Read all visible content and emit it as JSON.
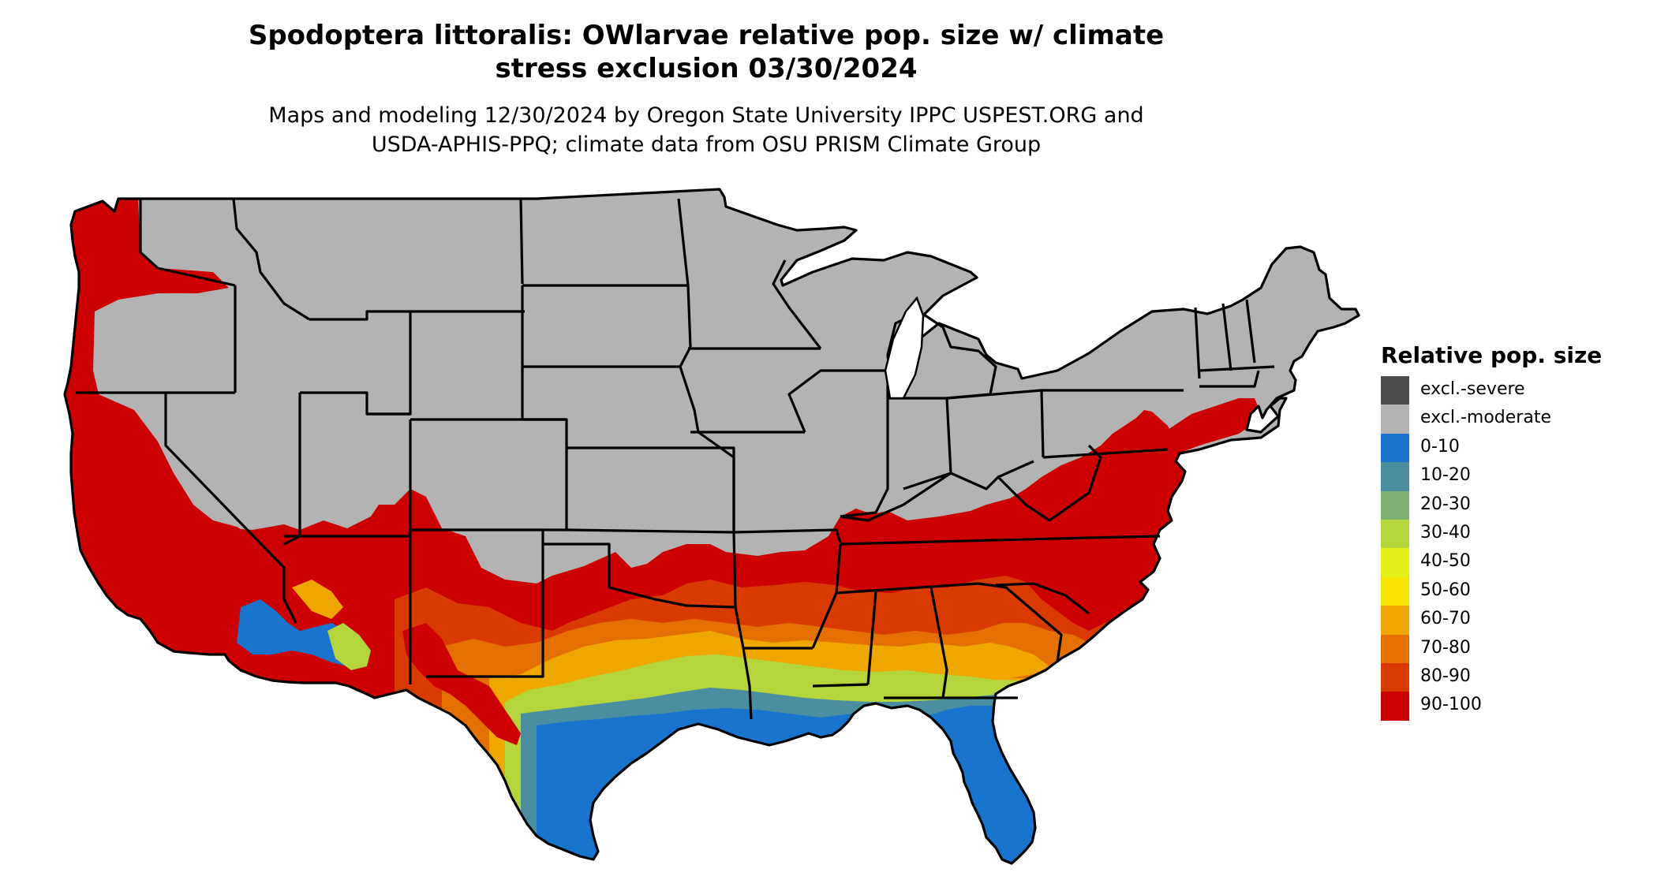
{
  "title": {
    "line1": "Spodoptera littoralis: OWlarvae relative pop. size w/ climate",
    "line2": "stress exclusion 03/30/2024"
  },
  "subtitle": {
    "line1": "Maps and modeling 12/30/2024 by Oregon State University IPPC USPEST.ORG and",
    "line2": "USDA-APHIS-PPQ; climate data from OSU PRISM Climate Group"
  },
  "legend": {
    "title": "Relative pop. size",
    "items": [
      {
        "label": "excl.-severe",
        "color": "#4d4d4d"
      },
      {
        "label": "excl.-moderate",
        "color": "#b3b3b3"
      },
      {
        "label": "0-10",
        "color": "#1874cd"
      },
      {
        "label": "10-20",
        "color": "#4a8ea0"
      },
      {
        "label": "20-30",
        "color": "#7fb074"
      },
      {
        "label": "30-40",
        "color": "#b5d53d"
      },
      {
        "label": "40-50",
        "color": "#e2ef18"
      },
      {
        "label": "50-60",
        "color": "#f5e200"
      },
      {
        "label": "60-70",
        "color": "#efa700"
      },
      {
        "label": "70-80",
        "color": "#e37000"
      },
      {
        "label": "80-90",
        "color": "#d83a00"
      },
      {
        "label": "90-100",
        "color": "#cc0000"
      }
    ]
  },
  "map": {
    "region": "conterminous United States",
    "boundary_color": "#000000"
  }
}
